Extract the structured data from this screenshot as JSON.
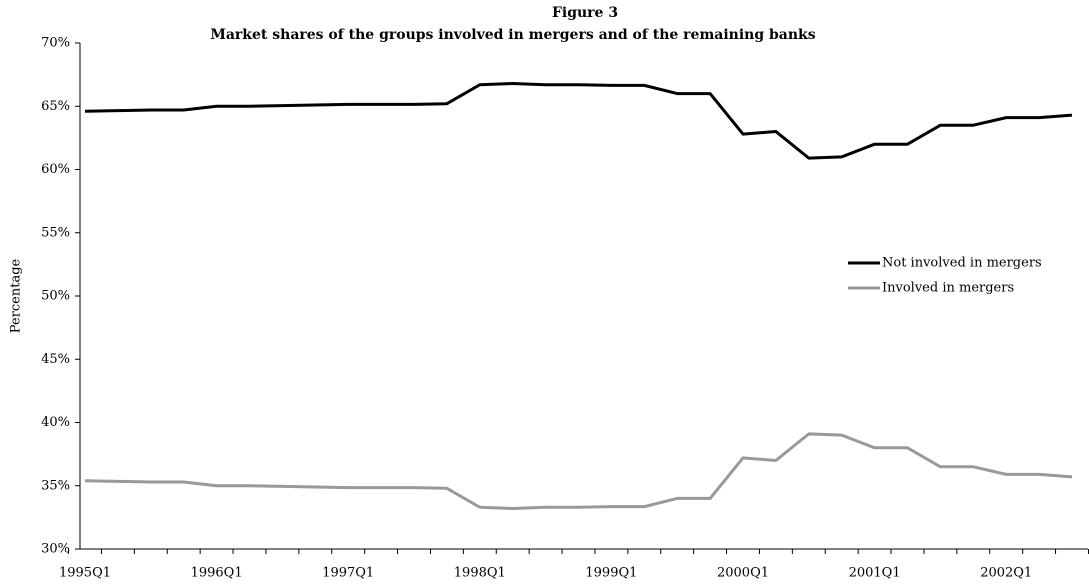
{
  "chart_data": {
    "type": "line",
    "title": "Figure 3",
    "subtitle": "Market shares of the groups involved in mergers and of the remaining banks",
    "y_label": "Percentage",
    "categories": [
      "1995Q1",
      null,
      null,
      null,
      "1996Q1",
      null,
      null,
      null,
      "1997Q1",
      null,
      null,
      null,
      "1998Q1",
      null,
      null,
      null,
      "1999Q1",
      null,
      null,
      null,
      "2000Q1",
      null,
      null,
      null,
      "2001Q1",
      null,
      null,
      null,
      "2002Q1",
      null,
      null
    ],
    "series": [
      {
        "name": "Not involved in mergers",
        "color": "#000000",
        "values": [
          64.6,
          64.65,
          64.7,
          64.7,
          65.0,
          65.0,
          65.05,
          65.1,
          65.15,
          65.15,
          65.15,
          65.2,
          66.7,
          66.8,
          66.7,
          66.7,
          66.65,
          66.65,
          66.0,
          66.0,
          62.8,
          63.0,
          60.9,
          61.0,
          62.0,
          62.0,
          63.5,
          63.5,
          64.1,
          64.1,
          64.3
        ]
      },
      {
        "name": "Involved in mergers",
        "color": "#999999",
        "values": [
          35.4,
          35.35,
          35.3,
          35.3,
          35.0,
          35.0,
          34.95,
          34.9,
          34.85,
          34.85,
          34.85,
          34.8,
          33.3,
          33.2,
          33.3,
          33.3,
          33.35,
          33.35,
          34.0,
          34.0,
          37.2,
          37.0,
          39.1,
          39.0,
          38.0,
          38.0,
          36.5,
          36.5,
          35.9,
          35.9,
          35.7
        ]
      }
    ],
    "ylim": [
      30,
      70
    ],
    "yticks": [
      {
        "value": 30,
        "label": "30%"
      },
      {
        "value": 35,
        "label": "35%"
      },
      {
        "value": 40,
        "label": "40%"
      },
      {
        "value": 45,
        "label": "45%"
      },
      {
        "value": 50,
        "label": "50%"
      },
      {
        "value": 55,
        "label": "55%"
      },
      {
        "value": 60,
        "label": "60%"
      },
      {
        "value": 65,
        "label": "65%"
      },
      {
        "value": 70,
        "label": "70%"
      }
    ],
    "grid": false
  }
}
